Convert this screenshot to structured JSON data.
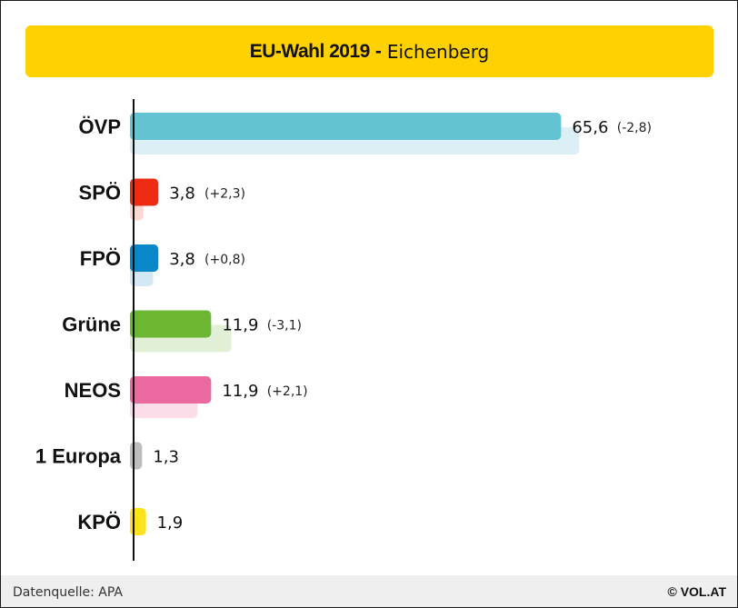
{
  "header": {
    "title_main": "EU-Wahl 2019",
    "title_sep": "-",
    "title_sub": "Eichenberg"
  },
  "chart_data": {
    "type": "bar",
    "orientation": "horizontal",
    "title": "EU-Wahl 2019 - Eichenberg",
    "categories": [
      "ÖVP",
      "SPÖ",
      "FPÖ",
      "Grüne",
      "NEOS",
      "1 Europa",
      "KPÖ"
    ],
    "series": [
      {
        "values": [
          65.6,
          3.8,
          3.8,
          11.9,
          11.9,
          1.3,
          1.9
        ]
      },
      {
        "values": [
          68.4,
          1.5,
          3.0,
          15.0,
          9.8,
          null,
          null
        ]
      }
    ],
    "value_labels": [
      "65,6",
      "3,8",
      "3,8",
      "11,9",
      "11,9",
      "1,3",
      "1,9"
    ],
    "change_labels": [
      "(-2,8)",
      "(+2,3)",
      "(+0,8)",
      "(-3,1)",
      "(+2,1)",
      "",
      ""
    ],
    "colors": [
      "#63c3d3",
      "#ee2c13",
      "#0a87c9",
      "#6db634",
      "#ea6aa0",
      "#bdbdbd",
      "#ffe21a"
    ],
    "previous_colors": [
      "#dceff5",
      "#fcd6d0",
      "#d3e8f4",
      "#e1efd6",
      "#fbdde9",
      "#eeeeee",
      "#fff7c4"
    ],
    "xlim": [
      0,
      100
    ],
    "grid": false
  },
  "footer": {
    "source": "Datenquelle: APA",
    "copyright": "© VOL.AT"
  }
}
